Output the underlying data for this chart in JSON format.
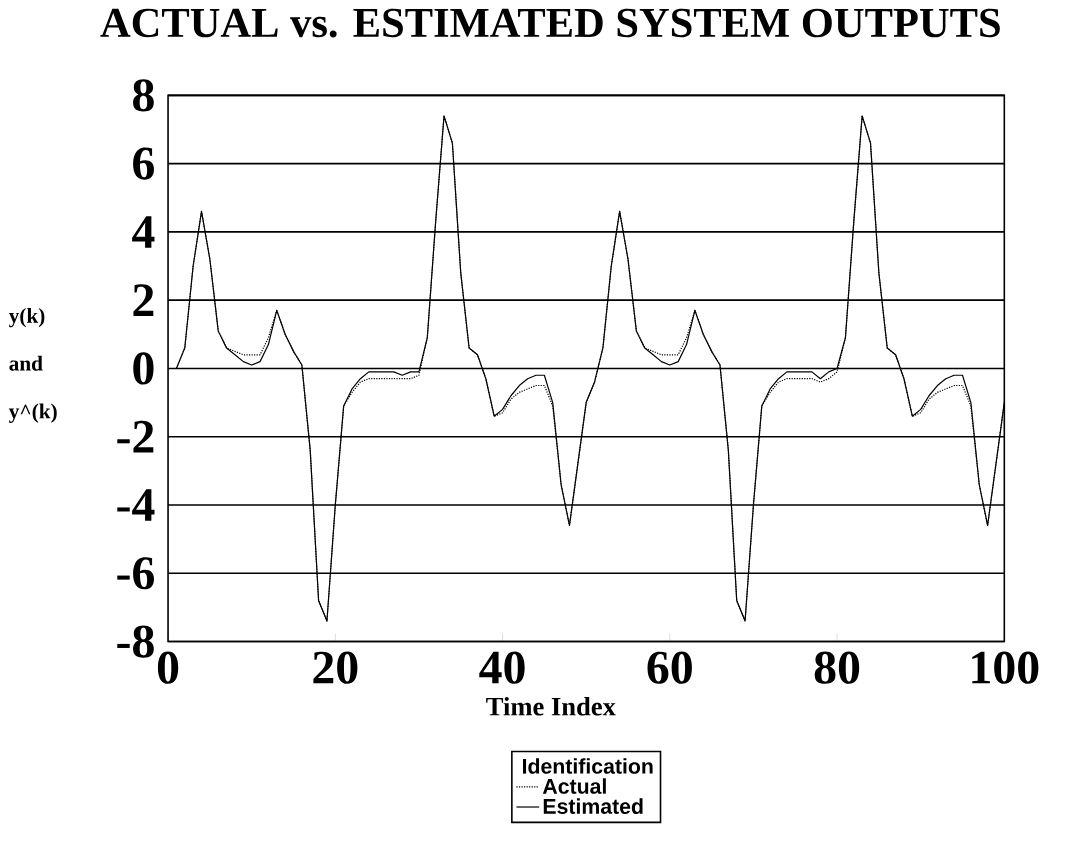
{
  "chart_data": {
    "type": "line",
    "title": "ACTUAL vs. ESTIMATED SYSTEM OUTPUTS",
    "xlabel": "Time Index",
    "ylabel": "y(k) and y^(k)",
    "legend_title": "Identification",
    "x": [
      1,
      2,
      3,
      4,
      5,
      6,
      7,
      8,
      9,
      10,
      11,
      12,
      13,
      14,
      15,
      16,
      17,
      18,
      19,
      20,
      21,
      22,
      23,
      24,
      25,
      26,
      27,
      28,
      29,
      30,
      31,
      32,
      33,
      34,
      35,
      36,
      37,
      38,
      39,
      40,
      41,
      42,
      43,
      44,
      45,
      46,
      47,
      48,
      49,
      50,
      51,
      52,
      53,
      54,
      55,
      56,
      57,
      58,
      59,
      60,
      61,
      62,
      63,
      64,
      65,
      66,
      67,
      68,
      69,
      70,
      71,
      72,
      73,
      74,
      75,
      76,
      77,
      78,
      79,
      80,
      81,
      82,
      83,
      84,
      85,
      86,
      87,
      88,
      89,
      90,
      91,
      92,
      93,
      94,
      95,
      96,
      97,
      98,
      99,
      100
    ],
    "series": [
      {
        "name": "Actual",
        "color": "#000000",
        "line_style": "dotted",
        "values": [
          0,
          0.6,
          3.0,
          4.6,
          3.2,
          1.1,
          0.6,
          0.5,
          0.4,
          0.4,
          0.4,
          0.9,
          1.7,
          1.0,
          0.5,
          0.1,
          -2.4,
          -6.8,
          -7.4,
          -4.0,
          -1.1,
          -0.7,
          -0.4,
          -0.3,
          -0.3,
          -0.3,
          -0.3,
          -0.3,
          -0.3,
          -0.2,
          0.9,
          4.3,
          7.4,
          6.6,
          2.8,
          0.6,
          0.4,
          -0.3,
          -1.4,
          -1.3,
          -0.9,
          -0.7,
          -0.6,
          -0.5,
          -0.5,
          -1.1,
          -3.4,
          -4.6,
          -2.8,
          -1.0,
          -0.4,
          0.6,
          3.0,
          4.6,
          3.2,
          1.1,
          0.6,
          0.5,
          0.4,
          0.4,
          0.4,
          0.9,
          1.7,
          1.0,
          0.5,
          0.1,
          -2.4,
          -6.8,
          -7.4,
          -4.0,
          -1.1,
          -0.7,
          -0.4,
          -0.3,
          -0.3,
          -0.3,
          -0.3,
          -0.4,
          -0.3,
          -0.1,
          0.9,
          4.3,
          7.4,
          6.6,
          2.8,
          0.6,
          0.4,
          -0.3,
          -1.4,
          -1.3,
          -0.9,
          -0.7,
          -0.6,
          -0.5,
          -0.5,
          -1.1,
          -3.4,
          -4.6,
          -2.8,
          -1.0
        ]
      },
      {
        "name": "Estimated",
        "color": "#000000",
        "line_style": "solid",
        "values": [
          0,
          0.6,
          3.0,
          4.6,
          3.2,
          1.1,
          0.6,
          0.4,
          0.2,
          0.1,
          0.2,
          0.7,
          1.7,
          1.0,
          0.5,
          0.1,
          -2.4,
          -6.8,
          -7.4,
          -4.0,
          -1.1,
          -0.6,
          -0.3,
          -0.1,
          -0.1,
          -0.1,
          -0.1,
          -0.2,
          -0.1,
          -0.1,
          0.9,
          4.3,
          7.4,
          6.6,
          2.8,
          0.6,
          0.4,
          -0.3,
          -1.4,
          -1.2,
          -0.8,
          -0.5,
          -0.3,
          -0.2,
          -0.2,
          -1.0,
          -3.4,
          -4.6,
          -2.8,
          -1.0,
          -0.4,
          0.6,
          3.0,
          4.6,
          3.2,
          1.1,
          0.6,
          0.4,
          0.2,
          0.1,
          0.2,
          0.7,
          1.7,
          1.0,
          0.5,
          0.1,
          -2.4,
          -6.8,
          -7.4,
          -4.0,
          -1.1,
          -0.6,
          -0.3,
          -0.1,
          -0.1,
          -0.1,
          -0.1,
          -0.3,
          -0.1,
          0.0,
          0.9,
          4.3,
          7.4,
          6.6,
          2.8,
          0.6,
          0.4,
          -0.3,
          -1.4,
          -1.2,
          -0.8,
          -0.5,
          -0.3,
          -0.2,
          -0.2,
          -1.0,
          -3.4,
          -4.6,
          -2.8,
          -1.0
        ]
      }
    ],
    "xlim": [
      0,
      100
    ],
    "ylim": [
      -8,
      8
    ],
    "xticks": [
      0,
      20,
      40,
      60,
      80,
      100
    ],
    "yticks": [
      -8,
      -6,
      -4,
      -2,
      0,
      2,
      4,
      6,
      8
    ],
    "grid": "y",
    "legend": "bottom"
  }
}
